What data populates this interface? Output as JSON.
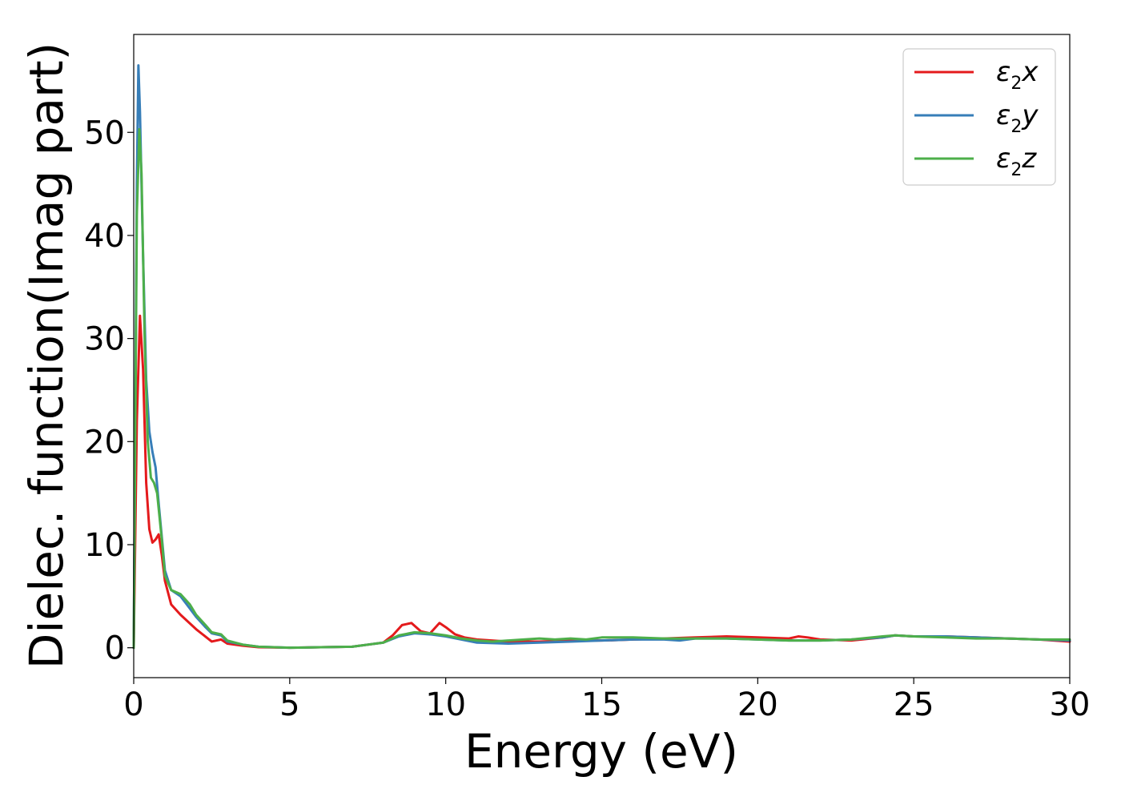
{
  "chart_data": {
    "type": "line",
    "xlabel": "Energy (eV)",
    "ylabel": "Dielec. function(Imag part)",
    "xlim": [
      0,
      30
    ],
    "ylim": [
      -2.9,
      59.5
    ],
    "xticks": [
      0,
      5,
      10,
      15,
      20,
      25,
      30
    ],
    "yticks": [
      0,
      10,
      20,
      30,
      40,
      50
    ],
    "legend": {
      "position": "top-right"
    },
    "series": [
      {
        "name": "ε2x",
        "label_main": "ε",
        "label_sub": "2",
        "label_end": "x",
        "color": "#e41a1c",
        "points": [
          [
            0.0,
            0.0
          ],
          [
            0.1,
            22.0
          ],
          [
            0.2,
            32.2
          ],
          [
            0.3,
            27.0
          ],
          [
            0.4,
            16.0
          ],
          [
            0.5,
            11.5
          ],
          [
            0.6,
            10.2
          ],
          [
            0.7,
            10.5
          ],
          [
            0.8,
            11.0
          ],
          [
            0.9,
            9.0
          ],
          [
            1.0,
            6.5
          ],
          [
            1.2,
            4.2
          ],
          [
            1.5,
            3.2
          ],
          [
            2.0,
            1.8
          ],
          [
            2.5,
            0.6
          ],
          [
            2.8,
            0.8
          ],
          [
            3.0,
            0.4
          ],
          [
            3.5,
            0.2
          ],
          [
            4.0,
            0.05
          ],
          [
            5.0,
            0.0
          ],
          [
            6.0,
            0.05
          ],
          [
            7.0,
            0.1
          ],
          [
            7.5,
            0.3
          ],
          [
            8.0,
            0.5
          ],
          [
            8.3,
            1.2
          ],
          [
            8.6,
            2.2
          ],
          [
            8.9,
            2.4
          ],
          [
            9.2,
            1.6
          ],
          [
            9.5,
            1.4
          ],
          [
            9.8,
            2.4
          ],
          [
            10.0,
            2.0
          ],
          [
            10.3,
            1.3
          ],
          [
            10.6,
            1.0
          ],
          [
            11.0,
            0.8
          ],
          [
            12.0,
            0.6
          ],
          [
            13.0,
            0.6
          ],
          [
            14.0,
            0.7
          ],
          [
            15.0,
            0.7
          ],
          [
            16.0,
            0.8
          ],
          [
            17.0,
            0.9
          ],
          [
            18.0,
            1.0
          ],
          [
            19.0,
            1.1
          ],
          [
            20.0,
            1.0
          ],
          [
            21.0,
            0.9
          ],
          [
            21.3,
            1.1
          ],
          [
            21.6,
            1.0
          ],
          [
            22.0,
            0.8
          ],
          [
            23.0,
            0.7
          ],
          [
            24.0,
            1.0
          ],
          [
            24.4,
            1.2
          ],
          [
            25.0,
            1.1
          ],
          [
            26.0,
            1.1
          ],
          [
            27.0,
            1.0
          ],
          [
            28.0,
            0.9
          ],
          [
            29.0,
            0.8
          ],
          [
            30.0,
            0.6
          ]
        ]
      },
      {
        "name": "ε2y",
        "label_main": "ε",
        "label_sub": "2",
        "label_end": "y",
        "color": "#377eb8",
        "points": [
          [
            0.0,
            0.0
          ],
          [
            0.1,
            45.0
          ],
          [
            0.15,
            56.5
          ],
          [
            0.2,
            52.0
          ],
          [
            0.3,
            38.0
          ],
          [
            0.4,
            26.0
          ],
          [
            0.5,
            21.0
          ],
          [
            0.6,
            19.0
          ],
          [
            0.7,
            17.5
          ],
          [
            0.8,
            14.0
          ],
          [
            1.0,
            7.5
          ],
          [
            1.2,
            5.6
          ],
          [
            1.5,
            5.0
          ],
          [
            1.8,
            3.8
          ],
          [
            2.0,
            3.0
          ],
          [
            2.3,
            2.0
          ],
          [
            2.5,
            1.4
          ],
          [
            2.8,
            1.2
          ],
          [
            3.0,
            0.6
          ],
          [
            3.5,
            0.3
          ],
          [
            4.0,
            0.1
          ],
          [
            5.0,
            0.0
          ],
          [
            6.0,
            0.05
          ],
          [
            7.0,
            0.1
          ],
          [
            7.5,
            0.3
          ],
          [
            8.0,
            0.5
          ],
          [
            8.5,
            1.1
          ],
          [
            9.0,
            1.4
          ],
          [
            9.5,
            1.3
          ],
          [
            10.0,
            1.1
          ],
          [
            10.5,
            0.8
          ],
          [
            11.0,
            0.5
          ],
          [
            12.0,
            0.4
          ],
          [
            13.0,
            0.5
          ],
          [
            14.0,
            0.6
          ],
          [
            15.0,
            0.7
          ],
          [
            16.0,
            0.8
          ],
          [
            17.0,
            0.8
          ],
          [
            17.5,
            0.7
          ],
          [
            18.0,
            0.9
          ],
          [
            19.0,
            0.9
          ],
          [
            20.0,
            0.8
          ],
          [
            21.0,
            0.7
          ],
          [
            22.0,
            0.7
          ],
          [
            23.0,
            0.8
          ],
          [
            24.0,
            1.0
          ],
          [
            24.4,
            1.2
          ],
          [
            25.0,
            1.1
          ],
          [
            26.0,
            1.1
          ],
          [
            27.0,
            1.0
          ],
          [
            28.0,
            0.9
          ],
          [
            29.0,
            0.8
          ],
          [
            30.0,
            0.7
          ]
        ]
      },
      {
        "name": "ε2z",
        "label_main": "ε",
        "label_sub": "2",
        "label_end": "z",
        "color": "#4daf4a",
        "points": [
          [
            0.0,
            0.0
          ],
          [
            0.1,
            42.0
          ],
          [
            0.18,
            50.3
          ],
          [
            0.25,
            46.0
          ],
          [
            0.35,
            30.0
          ],
          [
            0.45,
            20.0
          ],
          [
            0.55,
            16.5
          ],
          [
            0.65,
            16.0
          ],
          [
            0.75,
            15.0
          ],
          [
            0.9,
            10.5
          ],
          [
            1.0,
            7.0
          ],
          [
            1.2,
            5.6
          ],
          [
            1.5,
            5.2
          ],
          [
            1.8,
            4.2
          ],
          [
            2.0,
            3.2
          ],
          [
            2.3,
            2.2
          ],
          [
            2.5,
            1.5
          ],
          [
            2.8,
            1.3
          ],
          [
            3.0,
            0.7
          ],
          [
            3.5,
            0.3
          ],
          [
            4.0,
            0.1
          ],
          [
            5.0,
            0.0
          ],
          [
            6.0,
            0.05
          ],
          [
            7.0,
            0.1
          ],
          [
            7.5,
            0.3
          ],
          [
            8.0,
            0.5
          ],
          [
            8.5,
            1.2
          ],
          [
            9.0,
            1.5
          ],
          [
            9.5,
            1.4
          ],
          [
            10.0,
            1.2
          ],
          [
            10.5,
            0.9
          ],
          [
            11.0,
            0.7
          ],
          [
            11.5,
            0.6
          ],
          [
            12.0,
            0.7
          ],
          [
            12.5,
            0.8
          ],
          [
            13.0,
            0.9
          ],
          [
            13.5,
            0.8
          ],
          [
            14.0,
            0.9
          ],
          [
            14.5,
            0.8
          ],
          [
            15.0,
            1.0
          ],
          [
            16.0,
            1.0
          ],
          [
            17.0,
            0.9
          ],
          [
            18.0,
            0.9
          ],
          [
            19.0,
            0.9
          ],
          [
            20.0,
            0.8
          ],
          [
            21.0,
            0.7
          ],
          [
            22.0,
            0.7
          ],
          [
            23.0,
            0.8
          ],
          [
            24.0,
            1.1
          ],
          [
            24.4,
            1.2
          ],
          [
            25.0,
            1.1
          ],
          [
            26.0,
            1.0
          ],
          [
            27.0,
            0.9
          ],
          [
            28.0,
            0.9
          ],
          [
            29.0,
            0.8
          ],
          [
            30.0,
            0.8
          ]
        ]
      }
    ]
  }
}
